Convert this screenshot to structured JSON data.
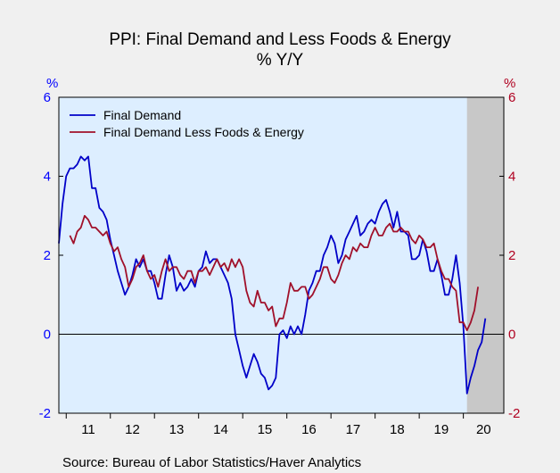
{
  "chart_data": {
    "type": "line",
    "title": "PPI: Final Demand and Less Foods & Energy",
    "subtitle": "% Y/Y",
    "y_unit_left": "%",
    "y_unit_right": "%",
    "ylim": [
      -2,
      6
    ],
    "yticks": [
      "6",
      "4",
      "2",
      "0",
      "-2"
    ],
    "ytick_values": [
      6,
      4,
      2,
      0,
      -2
    ],
    "x_start": 2010.833,
    "x_end": 2020.917,
    "xticks": [
      "11",
      "12",
      "13",
      "14",
      "15",
      "16",
      "17",
      "18",
      "19",
      "20"
    ],
    "recession_shading": [
      2020.083,
      2020.917
    ],
    "grid": false,
    "legend_position": "top-left",
    "source": "Source:  Bureau of Labor Statistics/Haver Analytics",
    "colors": {
      "final_demand": "#0000c8",
      "less_foods_energy": "#a0102a",
      "plot_background": "#ddeeff",
      "recession": "#c8c8c8"
    },
    "series": [
      {
        "name": "Final Demand",
        "color": "#0000c8",
        "start": 2010.833,
        "values": [
          2.3,
          3.3,
          4.0,
          4.2,
          4.2,
          4.3,
          4.5,
          4.4,
          4.5,
          3.7,
          3.7,
          3.2,
          3.1,
          2.9,
          2.4,
          2.0,
          1.6,
          1.3,
          1.0,
          1.2,
          1.5,
          1.9,
          1.7,
          1.9,
          1.6,
          1.6,
          1.3,
          0.9,
          0.9,
          1.5,
          2.0,
          1.7,
          1.1,
          1.3,
          1.1,
          1.2,
          1.4,
          1.2,
          1.6,
          1.7,
          2.1,
          1.8,
          1.9,
          1.9,
          1.7,
          1.5,
          1.3,
          0.9,
          0.0,
          -0.4,
          -0.8,
          -1.1,
          -0.8,
          -0.5,
          -0.7,
          -1.0,
          -1.1,
          -1.4,
          -1.3,
          -1.1,
          -0.0,
          0.1,
          -0.1,
          0.2,
          0.0,
          0.2,
          0.0,
          0.5,
          1.1,
          1.3,
          1.6,
          1.6,
          2.0,
          2.2,
          2.5,
          2.3,
          1.8,
          2.0,
          2.4,
          2.6,
          2.8,
          3.0,
          2.5,
          2.6,
          2.8,
          2.9,
          2.8,
          3.1,
          3.3,
          3.4,
          3.1,
          2.7,
          3.1,
          2.6,
          2.6,
          2.5,
          1.9,
          1.9,
          2.0,
          2.4,
          2.1,
          1.6,
          1.6,
          1.9,
          1.5,
          1.0,
          1.0,
          1.4,
          2.0,
          1.3,
          0.2,
          -1.5,
          -1.1,
          -0.8,
          -0.4,
          -0.2,
          0.4
        ]
      },
      {
        "name": "Final Demand Less Foods & Energy",
        "color": "#a0102a",
        "start": 2011.083,
        "values": [
          2.5,
          2.3,
          2.6,
          2.7,
          3.0,
          2.9,
          2.7,
          2.7,
          2.6,
          2.5,
          2.6,
          2.3,
          2.1,
          2.2,
          1.9,
          1.7,
          1.2,
          1.4,
          1.7,
          1.8,
          2.0,
          1.6,
          1.4,
          1.5,
          1.2,
          1.6,
          1.9,
          1.6,
          1.7,
          1.7,
          1.5,
          1.4,
          1.6,
          1.6,
          1.3,
          1.6,
          1.6,
          1.7,
          1.5,
          1.7,
          1.9,
          1.7,
          1.8,
          1.6,
          1.9,
          1.7,
          1.9,
          1.7,
          1.1,
          0.8,
          0.7,
          1.1,
          0.8,
          0.8,
          0.6,
          0.7,
          0.2,
          0.4,
          0.4,
          0.8,
          1.3,
          1.1,
          1.1,
          1.2,
          1.2,
          0.9,
          1.0,
          1.2,
          1.4,
          1.7,
          1.7,
          1.4,
          1.3,
          1.5,
          1.8,
          2.0,
          1.9,
          2.2,
          2.1,
          2.3,
          2.2,
          2.2,
          2.5,
          2.7,
          2.5,
          2.5,
          2.7,
          2.8,
          2.6,
          2.6,
          2.7,
          2.6,
          2.6,
          2.4,
          2.3,
          2.5,
          2.4,
          2.2,
          2.2,
          2.3,
          1.9,
          1.6,
          1.4,
          1.4,
          1.2,
          1.1,
          0.3,
          0.3,
          0.1,
          0.3,
          0.6,
          1.2
        ]
      }
    ]
  }
}
